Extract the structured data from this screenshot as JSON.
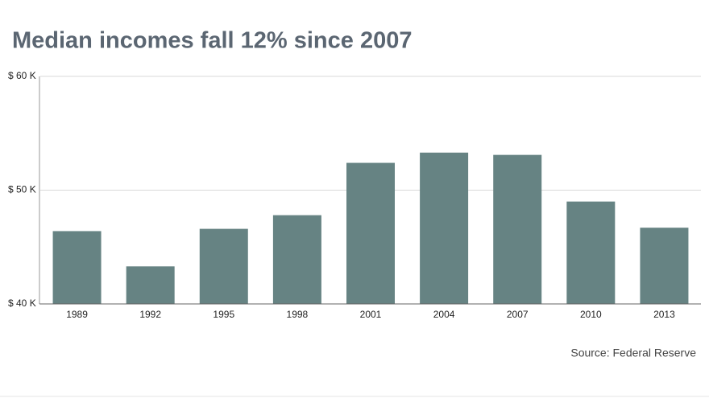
{
  "chart_data": {
    "type": "bar",
    "title": "Median incomes fall 12% since 2007",
    "source": "Source: Federal Reserve",
    "categories": [
      "1989",
      "1992",
      "1995",
      "1998",
      "2001",
      "2004",
      "2007",
      "2010",
      "2013"
    ],
    "values": [
      46400,
      43300,
      46600,
      47800,
      52400,
      53300,
      53100,
      49000,
      46700
    ],
    "color": "#668383",
    "ylim": [
      40000,
      60000
    ],
    "yticks": [
      {
        "value": 40000,
        "label": "$ 40 K"
      },
      {
        "value": 50000,
        "label": "$ 50 K"
      },
      {
        "value": 60000,
        "label": "$ 60 K"
      }
    ],
    "grid": true
  }
}
